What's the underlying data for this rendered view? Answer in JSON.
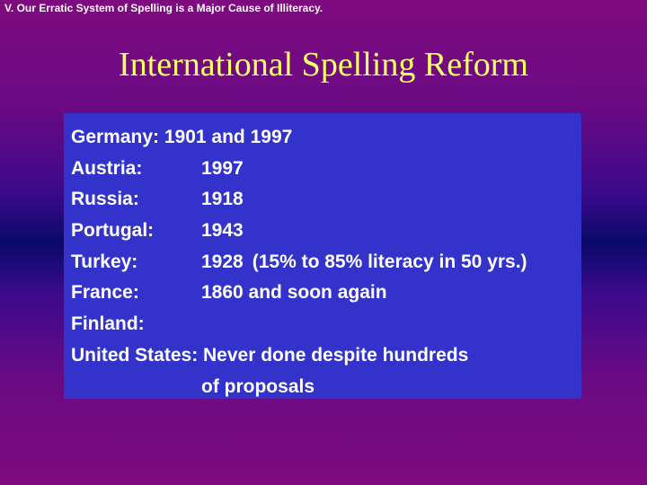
{
  "header": {
    "text": "V.  Our Erratic System of Spelling is a Major Cause of Illiteracy."
  },
  "slide": {
    "title": "International Spelling Reform"
  },
  "list": {
    "germany": "Germany: 1901 and 1997",
    "austria": {
      "label": "Austria:",
      "value": "1997"
    },
    "russia": {
      "label": "Russia:",
      "value": "1918"
    },
    "portugal": {
      "label": "Portugal:",
      "value": "1943"
    },
    "turkey": {
      "label": "Turkey:",
      "value": "1928",
      "note": "(15% to 85% literacy in 50 yrs.)"
    },
    "france": {
      "label": "France:",
      "value": "1860 and soon again"
    },
    "finland": {
      "label": "Finland:"
    },
    "united_states": {
      "line1": "United States:  Never done despite hundreds",
      "line2": "of proposals"
    }
  },
  "colors": {
    "background_top": "#7f0a7f",
    "background_middle": "#0a0a6a",
    "box": "#3333cc",
    "title": "#ffff66",
    "text": "#ffffff"
  }
}
